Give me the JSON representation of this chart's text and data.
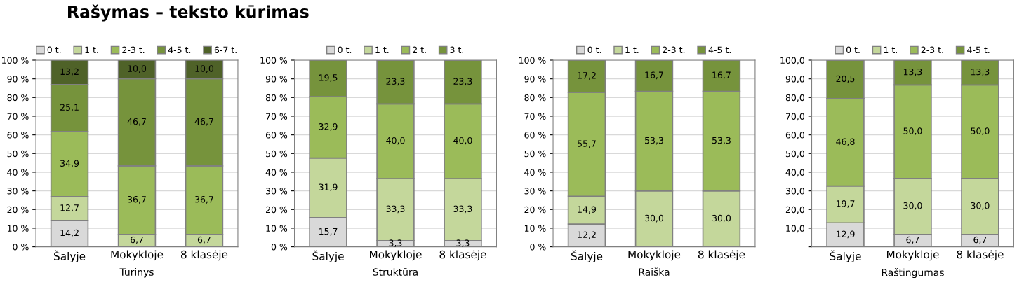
{
  "chart_data": [
    {
      "type": "bar",
      "title": "Rašymas – teksto kūrimas",
      "xlabel": "Turinys",
      "categories": [
        "Šalyje",
        "Mokykloje",
        "8 klasėje"
      ],
      "stacked": true,
      "ylim": [
        0,
        100
      ],
      "yticks": [
        {
          "value": 0,
          "label": "0 %"
        },
        {
          "value": 10,
          "label": "10 %"
        },
        {
          "value": 20,
          "label": "20 %"
        },
        {
          "value": 30,
          "label": "30 %"
        },
        {
          "value": 40,
          "label": "40 %"
        },
        {
          "value": 50,
          "label": "50 %"
        },
        {
          "value": 60,
          "label": "60 %"
        },
        {
          "value": 70,
          "label": "70 %"
        },
        {
          "value": 80,
          "label": "80 %"
        },
        {
          "value": 90,
          "label": "90 %"
        },
        {
          "value": 100,
          "label": "100 %"
        }
      ],
      "grid": "y",
      "legend": "top",
      "series": [
        {
          "name": "0 t.",
          "color": "#d9d9d9",
          "values": [
            14.2,
            null,
            null
          ],
          "value_labels": [
            "14,2",
            null,
            null
          ]
        },
        {
          "name": "1 t.",
          "color": "#c4d79b",
          "values": [
            12.7,
            6.7,
            6.7
          ],
          "value_labels": [
            "12,7",
            "6,7",
            "6,7"
          ]
        },
        {
          "name": "2-3 t.",
          "color": "#9bbb59",
          "values": [
            34.9,
            36.7,
            36.7
          ],
          "value_labels": [
            "34,9",
            "36,7",
            "36,7"
          ]
        },
        {
          "name": "4-5 t.",
          "color": "#76933c",
          "values": [
            25.1,
            46.7,
            46.7
          ],
          "value_labels": [
            "25,1",
            "46,7",
            "46,7"
          ]
        },
        {
          "name": "6-7 t.",
          "color": "#4f6228",
          "values": [
            13.2,
            10.0,
            10.0
          ],
          "value_labels": [
            "13,2",
            "10,0",
            "10,0"
          ]
        }
      ]
    },
    {
      "type": "bar",
      "xlabel": "Struktūra",
      "categories": [
        "Šalyje",
        "Mokykloje",
        "8 klasėje"
      ],
      "stacked": true,
      "ylim": [
        0,
        100
      ],
      "yticks": [
        {
          "value": 0,
          "label": "0 %"
        },
        {
          "value": 10,
          "label": "10 %"
        },
        {
          "value": 20,
          "label": "20 %"
        },
        {
          "value": 30,
          "label": "30 %"
        },
        {
          "value": 40,
          "label": "40 %"
        },
        {
          "value": 50,
          "label": "50 %"
        },
        {
          "value": 60,
          "label": "60 %"
        },
        {
          "value": 70,
          "label": "70 %"
        },
        {
          "value": 80,
          "label": "80 %"
        },
        {
          "value": 90,
          "label": "90 %"
        },
        {
          "value": 100,
          "label": "100 %"
        }
      ],
      "grid": "y",
      "legend": "top",
      "series": [
        {
          "name": "0 t.",
          "color": "#d9d9d9",
          "values": [
            15.7,
            3.3,
            3.3
          ],
          "value_labels": [
            "15,7",
            "3,3",
            "3,3"
          ]
        },
        {
          "name": "1 t.",
          "color": "#c4d79b",
          "values": [
            31.9,
            33.3,
            33.3
          ],
          "value_labels": [
            "31,9",
            "33,3",
            "33,3"
          ]
        },
        {
          "name": "2 t.",
          "color": "#9bbb59",
          "values": [
            32.9,
            40.0,
            40.0
          ],
          "value_labels": [
            "32,9",
            "40,0",
            "40,0"
          ]
        },
        {
          "name": "3 t.",
          "color": "#76933c",
          "values": [
            19.5,
            23.3,
            23.3
          ],
          "value_labels": [
            "19,5",
            "23,3",
            "23,3"
          ]
        }
      ]
    },
    {
      "type": "bar",
      "xlabel": "Raiška",
      "categories": [
        "Šalyje",
        "Mokykloje",
        "8 klasėje"
      ],
      "stacked": true,
      "ylim": [
        0,
        100
      ],
      "yticks": [
        {
          "value": 0,
          "label": "0 %"
        },
        {
          "value": 10,
          "label": "10 %"
        },
        {
          "value": 20,
          "label": "20 %"
        },
        {
          "value": 30,
          "label": "30 %"
        },
        {
          "value": 40,
          "label": "40 %"
        },
        {
          "value": 50,
          "label": "50 %"
        },
        {
          "value": 60,
          "label": "60 %"
        },
        {
          "value": 70,
          "label": "70 %"
        },
        {
          "value": 80,
          "label": "80 %"
        },
        {
          "value": 90,
          "label": "90 %"
        },
        {
          "value": 100,
          "label": "100 %"
        }
      ],
      "grid": "y",
      "legend": "top",
      "series": [
        {
          "name": "0 t.",
          "color": "#d9d9d9",
          "values": [
            12.2,
            null,
            null
          ],
          "value_labels": [
            "12,2",
            null,
            null
          ]
        },
        {
          "name": "1 t.",
          "color": "#c4d79b",
          "values": [
            14.9,
            30.0,
            30.0
          ],
          "value_labels": [
            "14,9",
            "30,0",
            "30,0"
          ]
        },
        {
          "name": "2-3 t.",
          "color": "#9bbb59",
          "values": [
            55.7,
            53.3,
            53.3
          ],
          "value_labels": [
            "55,7",
            "53,3",
            "53,3"
          ]
        },
        {
          "name": "4-5 t.",
          "color": "#76933c",
          "values": [
            17.2,
            16.7,
            16.7
          ],
          "value_labels": [
            "17,2",
            "16,7",
            "16,7"
          ]
        }
      ]
    },
    {
      "type": "bar",
      "xlabel": "Raštingumas",
      "categories": [
        "Šalyje",
        "Mokykloje",
        "8 klasėje"
      ],
      "stacked": true,
      "ylim": [
        0,
        100
      ],
      "yticks": [
        {
          "value": 0,
          "label": null
        },
        {
          "value": 10,
          "label": "10,0"
        },
        {
          "value": 20,
          "label": "20,0"
        },
        {
          "value": 30,
          "label": "30,0"
        },
        {
          "value": 40,
          "label": "40,0"
        },
        {
          "value": 50,
          "label": "50,0"
        },
        {
          "value": 60,
          "label": "60,0"
        },
        {
          "value": 70,
          "label": "70,0"
        },
        {
          "value": 80,
          "label": "80,0"
        },
        {
          "value": 90,
          "label": "90,0"
        },
        {
          "value": 100,
          "label": "100,0"
        }
      ],
      "grid": "y",
      "legend": "top",
      "series": [
        {
          "name": "0 t.",
          "color": "#d9d9d9",
          "values": [
            12.9,
            6.7,
            6.7
          ],
          "value_labels": [
            "12,9",
            "6,7",
            "6,7"
          ]
        },
        {
          "name": "1 t.",
          "color": "#c4d79b",
          "values": [
            19.7,
            30.0,
            30.0
          ],
          "value_labels": [
            "19,7",
            "30,0",
            "30,0"
          ]
        },
        {
          "name": "2-3 t.",
          "color": "#9bbb59",
          "values": [
            46.8,
            50.0,
            50.0
          ],
          "value_labels": [
            "46,8",
            "50,0",
            "50,0"
          ]
        },
        {
          "name": "4-5 t.",
          "color": "#76933c",
          "values": [
            20.5,
            13.3,
            13.3
          ],
          "value_labels": [
            "20,5",
            "13,3",
            "13,3"
          ]
        }
      ]
    }
  ]
}
